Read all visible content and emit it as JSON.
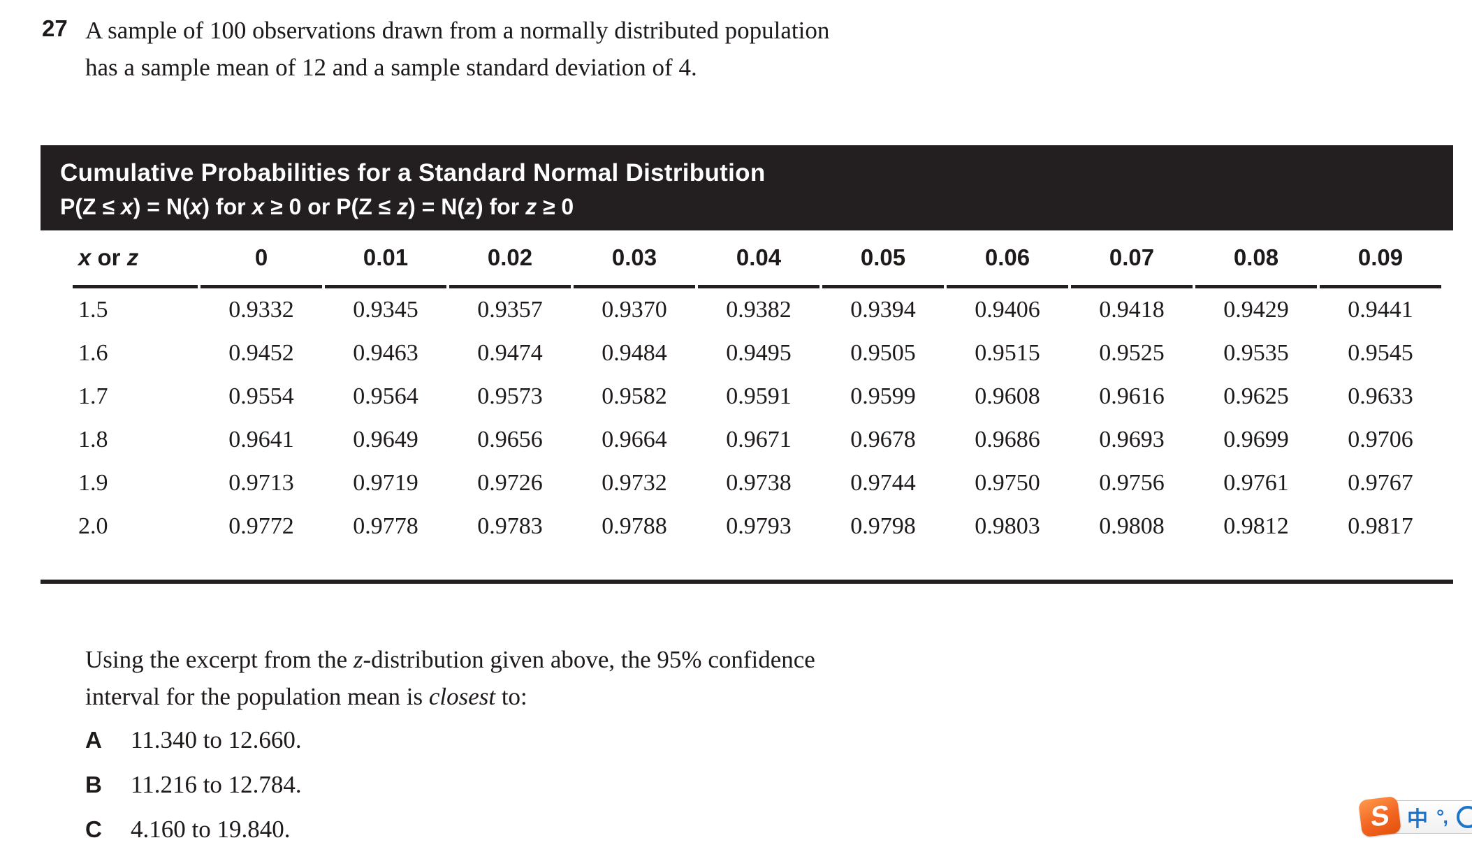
{
  "colors": {
    "banner_bg": "#231f20",
    "text": "#1d1a19",
    "sogou_orange": "#f26522",
    "ime_blue": "#1e74c9"
  },
  "question": {
    "number": "27",
    "lines": [
      "A sample of 100 observations drawn from a normally distributed population",
      "has a sample mean of 12 and a sample standard deviation of 4."
    ]
  },
  "table": {
    "banner_title": "Cumulative Probabilities for a Standard Normal Distribution",
    "banner_formula": [
      {
        "t": "P(Z ≤ "
      },
      {
        "t": "x",
        "i": true
      },
      {
        "t": ") = N("
      },
      {
        "t": "x",
        "i": true
      },
      {
        "t": ") for "
      },
      {
        "t": "x",
        "i": true
      },
      {
        "t": " ≥ 0 or P(Z ≤ "
      },
      {
        "t": "z",
        "i": true
      },
      {
        "t": ") = N("
      },
      {
        "t": "z",
        "i": true
      },
      {
        "t": ") for "
      },
      {
        "t": "z",
        "i": true
      },
      {
        "t": " ≥ 0"
      }
    ],
    "first_col_header": [
      {
        "t": "x",
        "i": true
      },
      {
        "t": " or "
      },
      {
        "t": "z",
        "i": true
      }
    ],
    "value_col_headers": [
      "0",
      "0.01",
      "0.02",
      "0.03",
      "0.04",
      "0.05",
      "0.06",
      "0.07",
      "0.08",
      "0.09"
    ],
    "rows": [
      {
        "z": "1.5",
        "v": [
          "0.9332",
          "0.9345",
          "0.9357",
          "0.9370",
          "0.9382",
          "0.9394",
          "0.9406",
          "0.9418",
          "0.9429",
          "0.9441"
        ]
      },
      {
        "z": "1.6",
        "v": [
          "0.9452",
          "0.9463",
          "0.9474",
          "0.9484",
          "0.9495",
          "0.9505",
          "0.9515",
          "0.9525",
          "0.9535",
          "0.9545"
        ]
      },
      {
        "z": "1.7",
        "v": [
          "0.9554",
          "0.9564",
          "0.9573",
          "0.9582",
          "0.9591",
          "0.9599",
          "0.9608",
          "0.9616",
          "0.9625",
          "0.9633"
        ]
      },
      {
        "z": "1.8",
        "v": [
          "0.9641",
          "0.9649",
          "0.9656",
          "0.9664",
          "0.9671",
          "0.9678",
          "0.9686",
          "0.9693",
          "0.9699",
          "0.9706"
        ]
      },
      {
        "z": "1.9",
        "v": [
          "0.9713",
          "0.9719",
          "0.9726",
          "0.9732",
          "0.9738",
          "0.9744",
          "0.9750",
          "0.9756",
          "0.9761",
          "0.9767"
        ]
      },
      {
        "z": "2.0",
        "v": [
          "0.9772",
          "0.9778",
          "0.9783",
          "0.9788",
          "0.9793",
          "0.9798",
          "0.9803",
          "0.9808",
          "0.9812",
          "0.9817"
        ]
      }
    ]
  },
  "prompt": {
    "lines": [
      [
        {
          "t": "Using the excerpt from the "
        },
        {
          "t": "z",
          "i": true
        },
        {
          "t": "-distribution given above, the 95% confidence"
        }
      ],
      [
        {
          "t": "interval for the population mean is "
        },
        {
          "t": "closest",
          "i": true
        },
        {
          "t": " to:"
        }
      ]
    ]
  },
  "options": [
    {
      "letter": "A",
      "text": "11.340 to 12.660."
    },
    {
      "letter": "B",
      "text": "11.216 to 12.784."
    },
    {
      "letter": "C",
      "text": "4.160 to 19.840."
    }
  ],
  "ime_toolbar": {
    "logo_letter": "S",
    "mode_label": "中",
    "punctuation_label": "°,"
  }
}
